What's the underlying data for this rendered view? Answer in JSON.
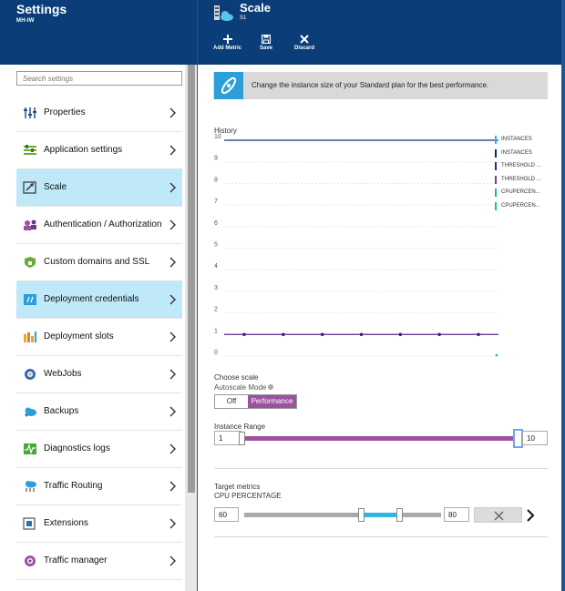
{
  "left_blade": {
    "title": "Settings",
    "subtitle": "MH-IW",
    "search_placeholder": "Search settings",
    "items": [
      {
        "label": "Properties",
        "icon": "properties-icon",
        "selected": false
      },
      {
        "label": "Application settings",
        "icon": "app-settings-icon",
        "selected": false
      },
      {
        "label": "Scale",
        "icon": "scale-icon",
        "selected": true
      },
      {
        "label": "Authentication / Authorization",
        "icon": "auth-icon",
        "selected": false
      },
      {
        "label": "Custom domains and SSL",
        "icon": "ssl-icon",
        "selected": false
      },
      {
        "label": "Deployment credentials",
        "icon": "credentials-icon",
        "selected": true
      },
      {
        "label": "Deployment slots",
        "icon": "slots-icon",
        "selected": false
      },
      {
        "label": "WebJobs",
        "icon": "webjobs-icon",
        "selected": false
      },
      {
        "label": "Backups",
        "icon": "backups-icon",
        "selected": false
      },
      {
        "label": "Diagnostics logs",
        "icon": "diagnostics-icon",
        "selected": false
      },
      {
        "label": "Traffic Routing",
        "icon": "traffic-routing-icon",
        "selected": false
      },
      {
        "label": "Extensions",
        "icon": "extensions-icon",
        "selected": false
      },
      {
        "label": "Traffic manager",
        "icon": "traffic-manager-icon",
        "selected": false
      }
    ]
  },
  "right_blade": {
    "title": "Scale",
    "subtitle": "S1",
    "commands": [
      {
        "label": "Add Metric",
        "icon": "plus-icon"
      },
      {
        "label": "Save",
        "icon": "save-icon"
      },
      {
        "label": "Discard",
        "icon": "discard-icon"
      }
    ],
    "info_text": "Change the instance size of your Standard plan for the best performance.",
    "history_label": "History",
    "choose_scale_label": "Choose scale",
    "autoscale_mode_label": "Autoscale Mode",
    "toggle_off": "Off",
    "toggle_performance": "Performance",
    "toggle_selected": "Performance",
    "instance_range_label": "Instance Range",
    "instance_min": "1",
    "instance_max": "10",
    "target_metrics_label": "Target metrics",
    "metric_name": "CPU PERCENTAGE",
    "metric_min": "60",
    "metric_max": "80"
  },
  "chart_data": {
    "type": "line",
    "title": "History",
    "ylim": [
      0,
      10
    ],
    "yticks": [
      "0",
      "1",
      "2",
      "3",
      "4",
      "5",
      "6",
      "7",
      "8",
      "9",
      "10"
    ],
    "legend_placement": "right",
    "series": [
      {
        "name": "INSTANCES",
        "color": "#2fb6e8",
        "values": []
      },
      {
        "name": "INSTANCES",
        "color": "#0b2a6b",
        "values": [
          1,
          1,
          1,
          1,
          1,
          1,
          1,
          1
        ]
      },
      {
        "name": "THRESHOLD ...",
        "color": "#1a2f8c",
        "values": [
          10,
          10,
          10,
          10,
          10,
          10,
          10,
          10
        ]
      },
      {
        "name": "THRESHOLD ...",
        "color": "#7d3c98",
        "values": [
          1,
          1,
          1,
          1,
          1,
          1,
          1,
          1
        ]
      },
      {
        "name": "CPUPERCEN...",
        "color": "#1abc9c",
        "values": []
      },
      {
        "name": "CPUPERCEN...",
        "color": "#1abc9c",
        "values": []
      }
    ],
    "marked_points": [
      1,
      1,
      1,
      1,
      1,
      1,
      1
    ]
  }
}
